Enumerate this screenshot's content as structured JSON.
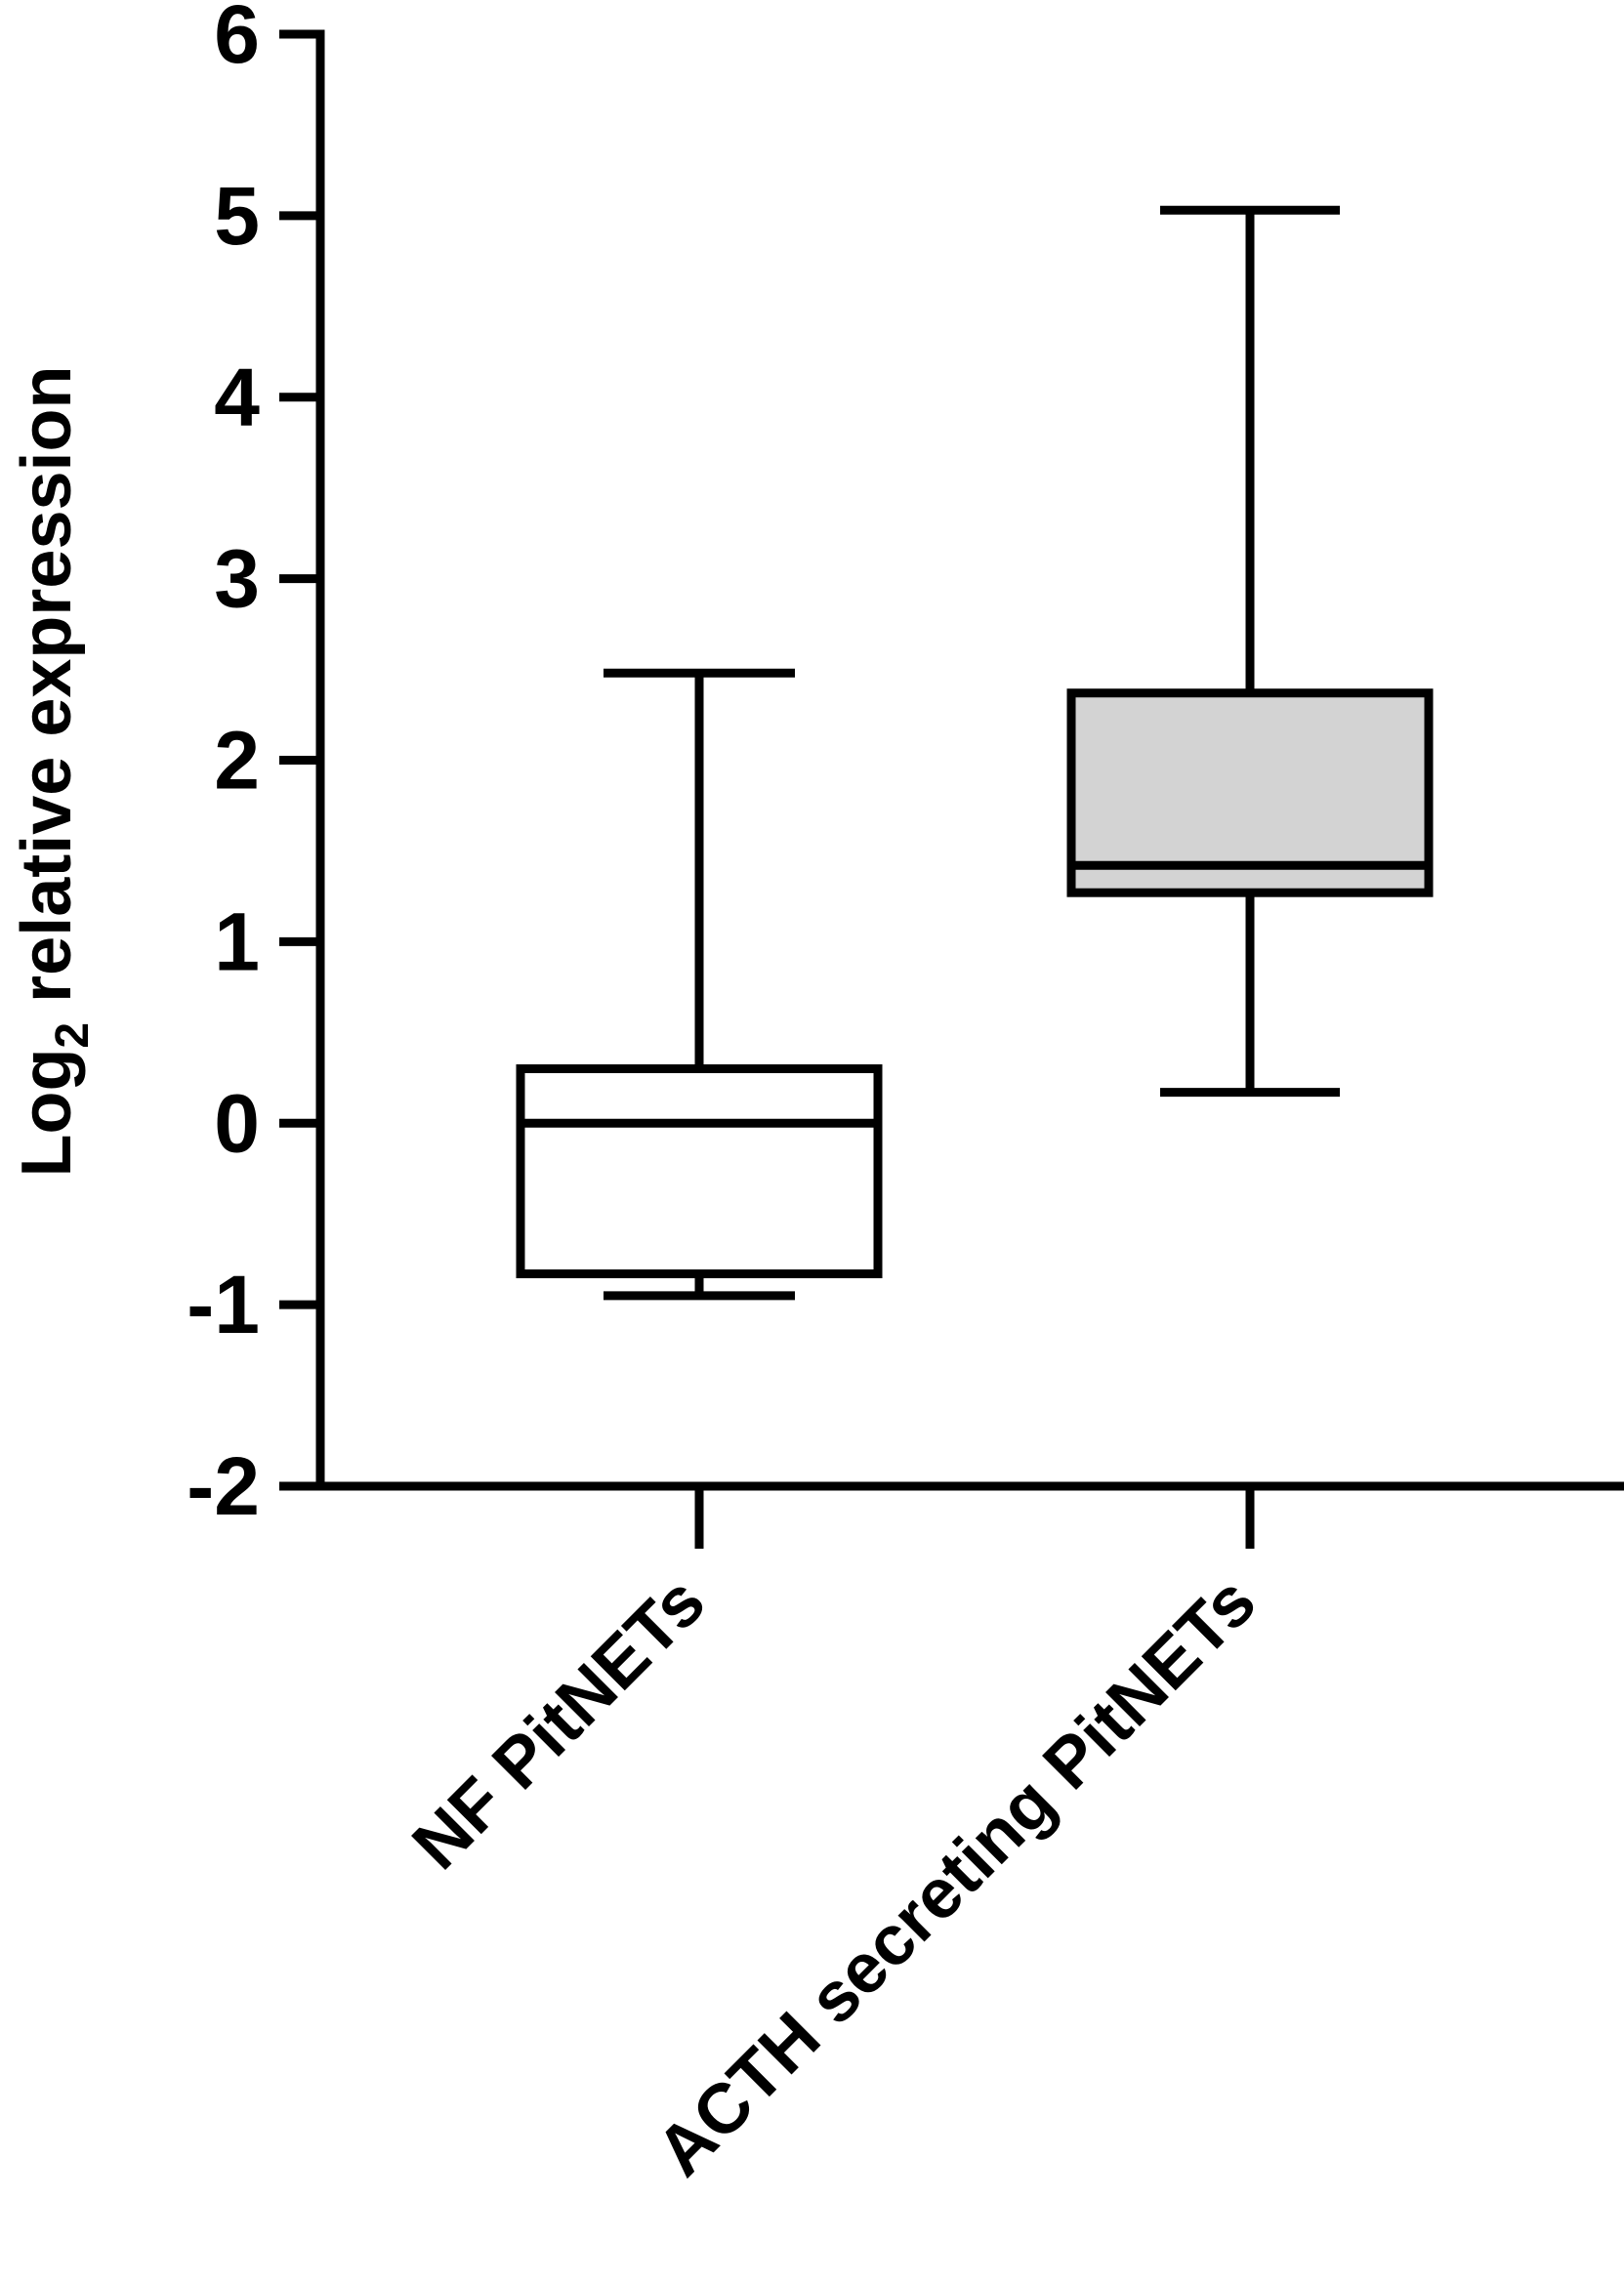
{
  "chart_data": {
    "type": "box",
    "title": "",
    "ylabel": {
      "prefix": "Log",
      "subscript": "2",
      "suffix": " relative expression"
    },
    "xlabel": "",
    "ylim": [
      -2,
      6
    ],
    "yticks": [
      -2,
      -1,
      0,
      1,
      2,
      3,
      4,
      5,
      6
    ],
    "ytick_labels": [
      "-2",
      "-1",
      "0",
      "1",
      "2",
      "3",
      "4",
      "5",
      "6"
    ],
    "grid": false,
    "legend": "none",
    "categories": [
      "NF PitNETs",
      "ACTH secreting PitNETs"
    ],
    "series": [
      {
        "category": "NF PitNETs",
        "min": -0.95,
        "q1": -0.83,
        "median": 0.0,
        "q3": 0.3,
        "max": 2.48,
        "fill": "#ffffff"
      },
      {
        "category": "ACTH secreting PitNETs",
        "min": 0.17,
        "q1": 1.27,
        "median": 1.42,
        "q3": 2.37,
        "max": 5.03,
        "fill": "#d3d3d3"
      }
    ],
    "colors": {
      "line": "#000000",
      "box_nf": "#ffffff",
      "box_acth": "#d3d3d3"
    }
  }
}
